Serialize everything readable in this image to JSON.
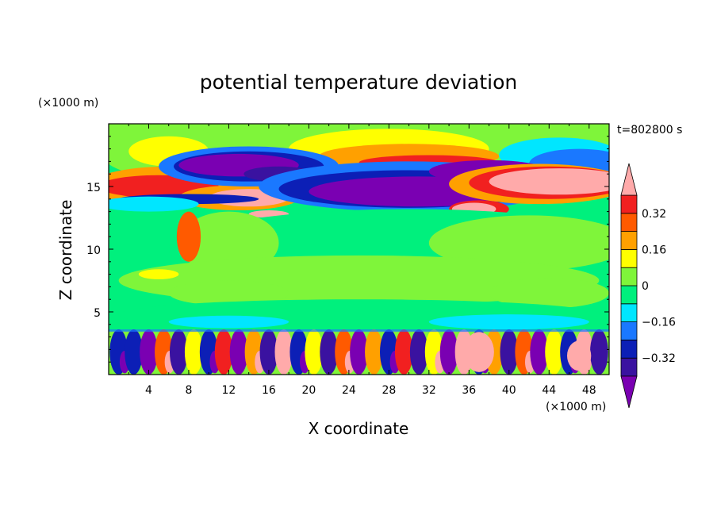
{
  "chart_data": {
    "type": "heatmap",
    "title": "potential temperature deviation",
    "xlabel": "X coordinate",
    "ylabel": "Z coordinate",
    "x_unit": "(×1000 m)",
    "y_unit": "(×1000 m)",
    "time_label": "t=802800 s",
    "xlim": [
      0,
      50
    ],
    "ylim": [
      0,
      20
    ],
    "x_ticks": [
      4,
      8,
      12,
      16,
      20,
      24,
      28,
      32,
      36,
      40,
      44,
      48
    ],
    "y_ticks": [
      5,
      10,
      15
    ],
    "colorbar": {
      "levels": [
        -0.4,
        -0.32,
        -0.24,
        -0.16,
        -0.08,
        0,
        0.08,
        0.16,
        0.24,
        0.32,
        0.4
      ],
      "tick_labels": [
        "0.32",
        "0.16",
        "0",
        "−0.16",
        "−0.32"
      ],
      "tick_values": [
        0.32,
        0.16,
        0,
        -0.16,
        -0.32
      ],
      "colors": [
        "#7a00b2",
        "#3a12a0",
        "#0c1fb6",
        "#1a78ff",
        "#00e6ff",
        "#00f07d",
        "#7ff53a",
        "#ffff00",
        "#ffa000",
        "#ff5a00",
        "#f12020",
        "#ffaaaa"
      ],
      "background_level_color": "#00f07d"
    },
    "features": [
      {
        "region": "upper-left band",
        "x": [
          1,
          20
        ],
        "z": [
          14.5,
          16.5
        ],
        "sign": "positive",
        "max": 0.4
      },
      {
        "region": "upper-center negative lobe",
        "x": [
          8,
          20
        ],
        "z": [
          15.5,
          17.5
        ],
        "sign": "negative",
        "min": -0.4
      },
      {
        "region": "upper-right negative lobe",
        "x": [
          18,
          40
        ],
        "z": [
          13.5,
          17
        ],
        "sign": "negative",
        "min": -0.4
      },
      {
        "region": "upper-right positive lobe",
        "x": [
          30,
          50
        ],
        "z": [
          13.5,
          17
        ],
        "sign": "positive",
        "max": 0.4
      },
      {
        "region": "lower boundary layer",
        "x": [
          0,
          50
        ],
        "z": [
          0,
          3.5
        ],
        "sign": "mixed",
        "range": [
          -0.4,
          0.4
        ]
      }
    ]
  }
}
